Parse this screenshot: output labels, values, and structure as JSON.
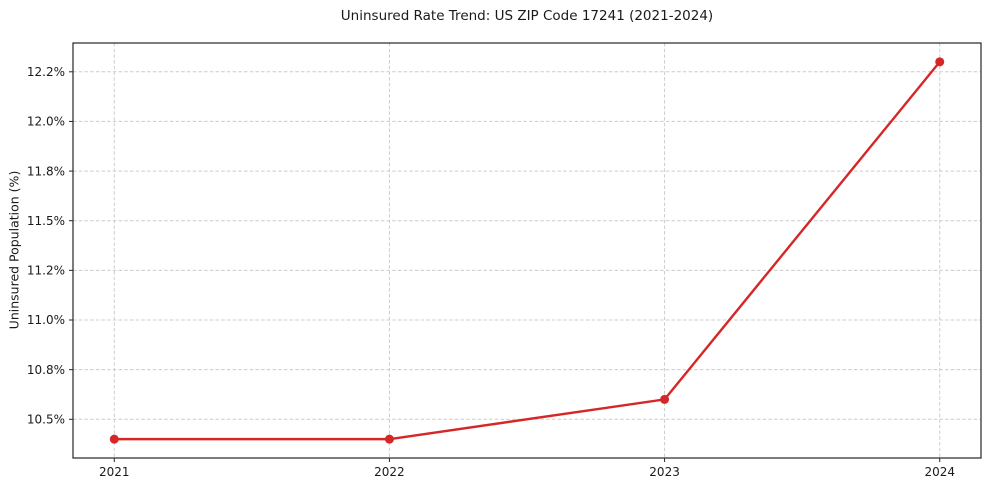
{
  "chart_data": {
    "type": "line",
    "title": "Uninsured Rate Trend: US ZIP Code 17241 (2021-2024)",
    "xlabel": "",
    "ylabel": "Uninsured Population (%)",
    "x": [
      2021,
      2022,
      2023,
      2024
    ],
    "series": [
      {
        "name": "Uninsured rate",
        "values": [
          10.4,
          10.4,
          10.6,
          12.3
        ]
      }
    ],
    "x_tick_labels": [
      "2021",
      "2022",
      "2023",
      "2024"
    ],
    "y_ticks": [
      10.5,
      10.75,
      11.0,
      11.25,
      11.5,
      11.75,
      12.0,
      12.25
    ],
    "y_tick_labels": [
      "10.5%",
      "10.8%",
      "11.0%",
      "11.2%",
      "11.5%",
      "11.8%",
      "12.0%",
      "12.2%"
    ],
    "xlim": [
      2020.85,
      2024.15
    ],
    "ylim": [
      10.305,
      12.395
    ],
    "grid": true,
    "grid_style": "dashed",
    "legend": "none",
    "colors": {
      "line": "#d62728",
      "marker": "#d62728",
      "grid": "#cccccc",
      "spine": "#262626",
      "text": "#1a1a1a",
      "background": "#ffffff"
    }
  }
}
